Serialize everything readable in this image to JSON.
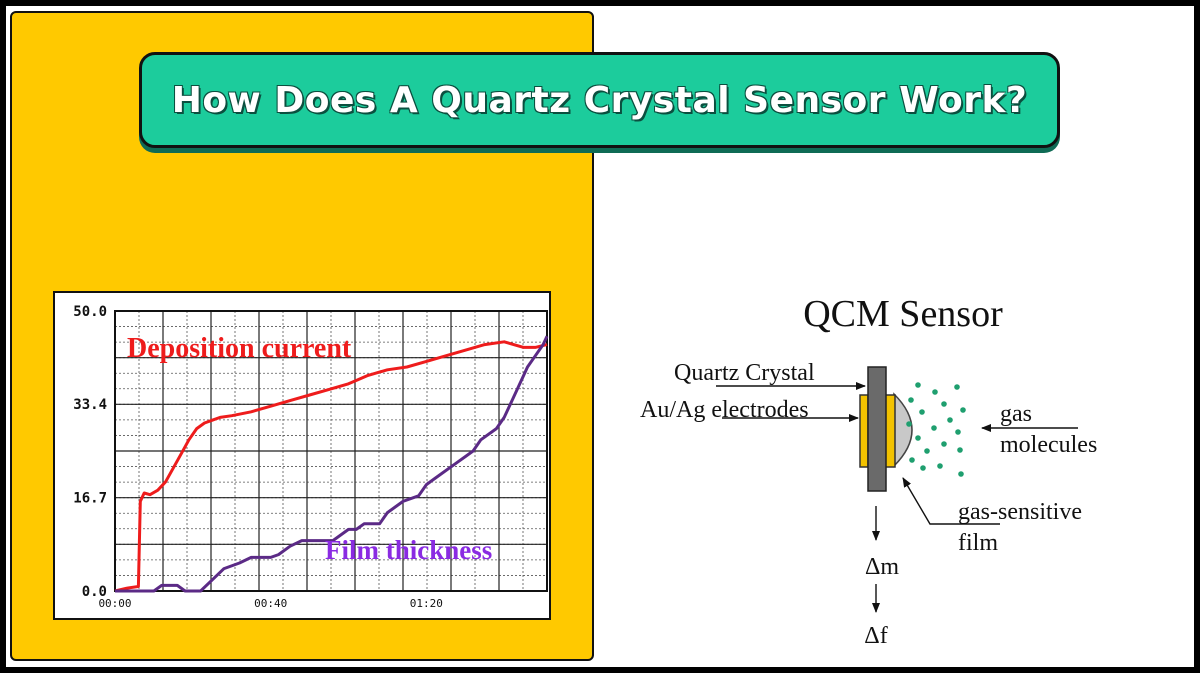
{
  "title": "How Does A Quartz Crystal Sensor Work?",
  "colors": {
    "panel": "#ffc900",
    "banner": "#1ccc9c",
    "deposition": "#ee1c1c",
    "film": "#5b2a86",
    "electrode": "#f2c200",
    "crystal": "#6a6a6a",
    "film_layer": "#c8c8c8",
    "gas_dot": "#1f9f6f"
  },
  "chart_data": {
    "type": "line",
    "x_ticks": [
      "00:00",
      "00:40",
      "01:20"
    ],
    "y_ticks": [
      "0.0",
      "16.7",
      "33.4",
      "50.0"
    ],
    "ylim": [
      0,
      50
    ],
    "xlim": [
      0,
      111
    ],
    "grid": true,
    "series": [
      {
        "name": "Deposition current",
        "x": [
          0,
          3,
          6,
          6.5,
          7.5,
          9,
          11,
          13,
          15,
          17,
          19,
          21,
          23,
          25,
          27,
          30,
          35,
          40,
          45,
          50,
          55,
          60,
          65,
          70,
          75,
          80,
          85,
          90,
          95,
          100,
          105,
          108,
          111
        ],
        "values": [
          0,
          0.5,
          0.8,
          16,
          17.5,
          17.2,
          18,
          19.5,
          22,
          24.5,
          27,
          29,
          30,
          30.5,
          31,
          31.3,
          32,
          33,
          34,
          35,
          36,
          37,
          38.5,
          39.5,
          40,
          41,
          42,
          43,
          44,
          44.5,
          43.5,
          43.5,
          44
        ]
      },
      {
        "name": "Film thickness",
        "x": [
          0,
          10,
          12,
          16,
          18,
          22,
          25,
          28,
          32,
          35,
          40,
          42,
          45,
          48,
          50,
          56,
          60,
          62,
          64,
          68,
          70,
          72,
          74,
          78,
          80,
          82,
          84,
          88,
          90,
          92,
          94,
          98,
          100,
          102,
          104,
          106,
          108,
          110,
          111
        ],
        "values": [
          0,
          0,
          1,
          1,
          0,
          0,
          2,
          4,
          5,
          6,
          6,
          6.5,
          8,
          9,
          9,
          9,
          11,
          11,
          12,
          12,
          14,
          15,
          16,
          17,
          19,
          20,
          21,
          23,
          24,
          25,
          27,
          29,
          31,
          34,
          37,
          40,
          42,
          44,
          45.5
        ]
      }
    ],
    "annotations": [
      "Deposition current",
      "Film thickness"
    ]
  },
  "diagram": {
    "heading": "QCM Sensor",
    "labels": {
      "quartz_crystal": "Quartz Crystal",
      "electrodes": "Au/Ag electrodes",
      "gas_line1": "gas",
      "gas_line2": "molecules",
      "film_line1": "gas-sensitive",
      "film_line2": "film",
      "delta_m": "Δm",
      "delta_f": "Δf"
    }
  }
}
